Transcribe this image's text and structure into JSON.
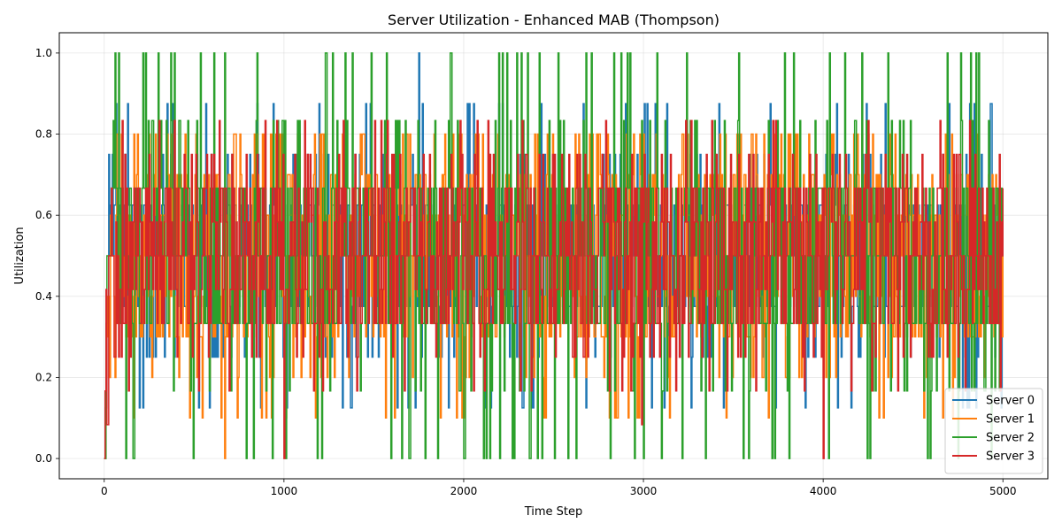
{
  "chart_data": {
    "type": "line",
    "title": "Server Utilization - Enhanced MAB (Thompson)",
    "xlabel": "Time Step",
    "ylabel": "Utilization",
    "xlim": [
      -250,
      5250
    ],
    "ylim": [
      -0.05,
      1.05
    ],
    "xticks": [
      0,
      1000,
      2000,
      3000,
      4000,
      5000
    ],
    "yticks": [
      0.0,
      0.2,
      0.4,
      0.6,
      0.8,
      1.0
    ],
    "xtick_labels": [
      "0",
      "1000",
      "2000",
      "3000",
      "4000",
      "5000"
    ],
    "ytick_labels": [
      "0.0",
      "0.2",
      "0.4",
      "0.6",
      "0.8",
      "1.0"
    ],
    "grid": true,
    "legend_position": "bottom-right",
    "x_range": [
      0,
      5000
    ],
    "series": [
      {
        "name": "Server 0",
        "color": "#1f77b4",
        "levels": [
          0.125,
          0.25,
          0.375,
          0.5,
          0.625,
          0.75,
          0.875
        ],
        "typical_range": [
          0.375,
          0.625
        ],
        "center": 0.5,
        "peaks": [
          [
            1750,
            1.0
          ],
          [
            380,
            0.875
          ],
          [
            1480,
            0.875
          ],
          [
            4700,
            0.875
          ],
          [
            4840,
            0.875
          ],
          [
            3130,
            0.875
          ],
          [
            3420,
            0.875
          ],
          [
            2430,
            0.875
          ]
        ]
      },
      {
        "name": "Server 1",
        "color": "#ff7f0e",
        "levels": [
          0.1,
          0.2,
          0.3,
          0.4,
          0.5,
          0.6,
          0.7,
          0.8
        ],
        "typical_range": [
          0.3,
          0.7
        ],
        "center": 0.5,
        "peaks": [
          [
            720,
            0.8
          ],
          [
            1940,
            0.8
          ],
          [
            2640,
            0.8
          ],
          [
            4020,
            0.8
          ],
          [
            4250,
            0.8
          ],
          [
            670,
            0.0
          ],
          [
            2000,
            0.1
          ]
        ]
      },
      {
        "name": "Server 2",
        "color": "#2ca02c",
        "levels": [
          0.0,
          0.1667,
          0.3333,
          0.5,
          0.6667,
          0.8333,
          1.0
        ],
        "typical_range": [
          0.3333,
          0.6667
        ],
        "center": 0.5,
        "peaks": [
          [
            60,
            1.0
          ],
          [
            80,
            1.0
          ],
          [
            230,
            1.0
          ],
          [
            370,
            1.0
          ],
          [
            390,
            1.0
          ],
          [
            670,
            1.0
          ],
          [
            850,
            1.0
          ],
          [
            1270,
            1.0
          ],
          [
            2710,
            1.0
          ],
          [
            3240,
            1.0
          ],
          [
            1210,
            0.0
          ],
          [
            1700,
            0.0
          ],
          [
            2000,
            0.0
          ],
          [
            2270,
            0.0
          ],
          [
            2370,
            0.0
          ],
          [
            3000,
            0.0
          ],
          [
            3810,
            0.0
          ],
          [
            4030,
            0.0
          ],
          [
            4260,
            0.0
          ],
          [
            4580,
            0.0
          ]
        ]
      },
      {
        "name": "Server 3",
        "color": "#d62728",
        "levels": [
          0.0833,
          0.1667,
          0.25,
          0.3333,
          0.4167,
          0.5,
          0.5833,
          0.6667,
          0.75,
          0.8333
        ],
        "typical_range": [
          0.3333,
          0.6667
        ],
        "center": 0.5,
        "peaks": [
          [
            1000,
            0.0
          ],
          [
            4000,
            0.0
          ],
          [
            1330,
            0.8333
          ],
          [
            4250,
            0.8333
          ],
          [
            3380,
            0.8333
          ],
          [
            2990,
            0.0833
          ]
        ]
      }
    ]
  }
}
